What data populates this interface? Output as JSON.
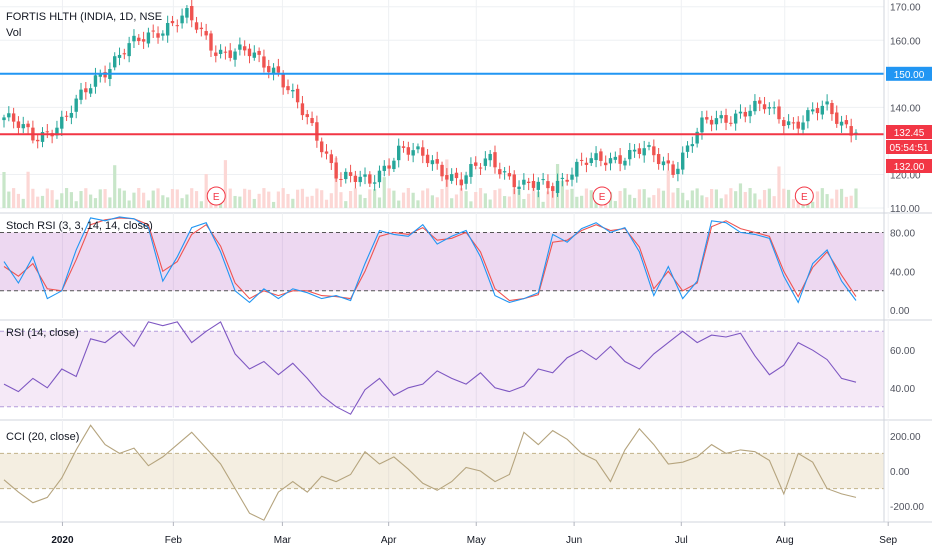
{
  "symbol": {
    "title": "FORTIS HLTH (INDIA, 1D, NSE",
    "volume_label": "Vol"
  },
  "colors": {
    "up": "#26a69a",
    "down": "#ef5350",
    "h_line_blue": "#2196f3",
    "h_line_red": "#f23645",
    "stoch_k": "#2196f3",
    "stoch_d": "#ef5350",
    "osc_band": "#9c27b0",
    "rsi_line": "#7e57c2",
    "cci_line": "#b5a47e",
    "cci_band": "#d9c79d"
  },
  "chart_data": [
    {
      "pane": "price",
      "type": "candlestick",
      "title": "FORTIS HLTH (INDIA, 1D, NSE",
      "y_ticks": [
        110,
        120,
        140,
        160,
        170
      ],
      "ylim": [
        110,
        172
      ],
      "horizontal_lines": [
        {
          "value": 150.0,
          "label": "150.00",
          "color": "#2196f3"
        },
        {
          "value": 132.0,
          "label": "132.00",
          "color": "#f23645"
        }
      ],
      "last_price_label": "132.45",
      "countdown_label": "05:54:51",
      "earnings_markers": [
        {
          "label": "E",
          "date": "Feb 10"
        },
        {
          "label": "E",
          "date": "Jun 28"
        },
        {
          "label": "E",
          "date": "Aug 21"
        }
      ],
      "close_keypoints": [
        {
          "x": "Dec 19",
          "close": 137
        },
        {
          "x": "Jan 6",
          "close": 131
        },
        {
          "x": "Jan 16",
          "close": 136
        },
        {
          "x": "Jan 22",
          "close": 149
        },
        {
          "x": "Jan 30",
          "close": 157
        },
        {
          "x": "Feb 6",
          "close": 163
        },
        {
          "x": "Feb 10",
          "close": 167
        },
        {
          "x": "Feb 14",
          "close": 157
        },
        {
          "x": "Feb 24",
          "close": 156
        },
        {
          "x": "Mar 2",
          "close": 151
        },
        {
          "x": "Mar 9",
          "close": 135
        },
        {
          "x": "Mar 16",
          "close": 120
        },
        {
          "x": "Mar 23",
          "close": 117
        },
        {
          "x": "Apr 2",
          "close": 128
        },
        {
          "x": "Apr 15",
          "close": 124
        },
        {
          "x": "May 4",
          "close": 118
        },
        {
          "x": "May 11",
          "close": 125
        },
        {
          "x": "May 25",
          "close": 116
        },
        {
          "x": "Jun 2",
          "close": 117
        },
        {
          "x": "Jun 15",
          "close": 123
        },
        {
          "x": "Jun 24",
          "close": 125
        },
        {
          "x": "Jul 2",
          "close": 127
        },
        {
          "x": "Jul 10",
          "close": 122
        },
        {
          "x": "Jul 23",
          "close": 135
        },
        {
          "x": "Aug 3",
          "close": 138
        },
        {
          "x": "Aug 10",
          "close": 140
        },
        {
          "x": "Aug 17",
          "close": 135
        },
        {
          "x": "Aug 24",
          "close": 140
        },
        {
          "x": "Aug 31",
          "close": 132.45
        }
      ]
    },
    {
      "pane": "stoch_rsi",
      "type": "line",
      "title": "Stoch RSI (3, 3, 14, 14, close)",
      "y_ticks": [
        0,
        40,
        80
      ],
      "tick_labels": [
        "0.00",
        "40.00",
        "80.00"
      ],
      "band": [
        20,
        80
      ],
      "ylim": [
        -8,
        100
      ],
      "series": [
        {
          "values_k": [
            50,
            28,
            55,
            12,
            20,
            62,
            95,
            92,
            96,
            94,
            85,
            30,
            55,
            85,
            90,
            60,
            20,
            8,
            22,
            12,
            22,
            18,
            12,
            15,
            10,
            48,
            82,
            78,
            76,
            88,
            68,
            76,
            82,
            55,
            15,
            8,
            12,
            18,
            78,
            70,
            84,
            90,
            80,
            85,
            60,
            15,
            45,
            12,
            30,
            92,
            90,
            80,
            78,
            74,
            35,
            8,
            48,
            62,
            30,
            10
          ]
        },
        {
          "values_d": [
            45,
            35,
            48,
            22,
            20,
            52,
            88,
            93,
            95,
            94,
            88,
            40,
            50,
            78,
            88,
            66,
            28,
            12,
            20,
            15,
            20,
            20,
            15,
            14,
            12,
            40,
            76,
            80,
            78,
            85,
            72,
            74,
            80,
            60,
            22,
            10,
            12,
            16,
            70,
            72,
            82,
            88,
            82,
            84,
            65,
            22,
            40,
            20,
            28,
            86,
            92,
            84,
            80,
            76,
            40,
            14,
            44,
            60,
            36,
            14
          ]
        }
      ]
    },
    {
      "pane": "rsi",
      "type": "line",
      "title": "RSI (14, close)",
      "y_ticks": [
        40,
        60
      ],
      "tick_labels": [
        "40.00",
        "60.00"
      ],
      "band": [
        30,
        70
      ],
      "ylim": [
        24,
        76
      ],
      "values": [
        42,
        38,
        45,
        40,
        50,
        46,
        66,
        64,
        70,
        62,
        75,
        73,
        75,
        64,
        70,
        75,
        58,
        50,
        54,
        47,
        53,
        45,
        36,
        30,
        26,
        39,
        45,
        36,
        40,
        42,
        49,
        45,
        42,
        48,
        40,
        38,
        41,
        50,
        48,
        56,
        60,
        55,
        62,
        54,
        50,
        58,
        64,
        70,
        64,
        68,
        67,
        69,
        57,
        47,
        52,
        64,
        60,
        55,
        45,
        43
      ]
    },
    {
      "pane": "cci",
      "type": "line",
      "title": "CCI (20, close)",
      "y_ticks": [
        200,
        0,
        -200
      ],
      "tick_labels": [
        "200.00",
        "0.00",
        "-200.00"
      ],
      "band": [
        -100,
        100
      ],
      "ylim": [
        -290,
        290
      ],
      "values": [
        -50,
        -120,
        -180,
        -150,
        -40,
        120,
        260,
        150,
        100,
        130,
        30,
        80,
        150,
        220,
        130,
        40,
        -100,
        -240,
        -280,
        -120,
        -60,
        -120,
        -30,
        -60,
        -20,
        110,
        40,
        80,
        10,
        -70,
        -110,
        -60,
        20,
        0,
        -60,
        -20,
        220,
        150,
        230,
        180,
        100,
        60,
        -60,
        120,
        240,
        150,
        40,
        50,
        80,
        150,
        100,
        120,
        110,
        60,
        -130,
        100,
        50,
        -100,
        -130,
        -150
      ]
    }
  ],
  "x_axis": {
    "labels": [
      "2020",
      "Feb",
      "Mar",
      "Apr",
      "May",
      "Jun",
      "Jul",
      "Aug",
      "Sep"
    ],
    "positions": [
      0.067,
      0.186,
      0.303,
      0.417,
      0.511,
      0.616,
      0.731,
      0.842,
      0.953
    ]
  }
}
